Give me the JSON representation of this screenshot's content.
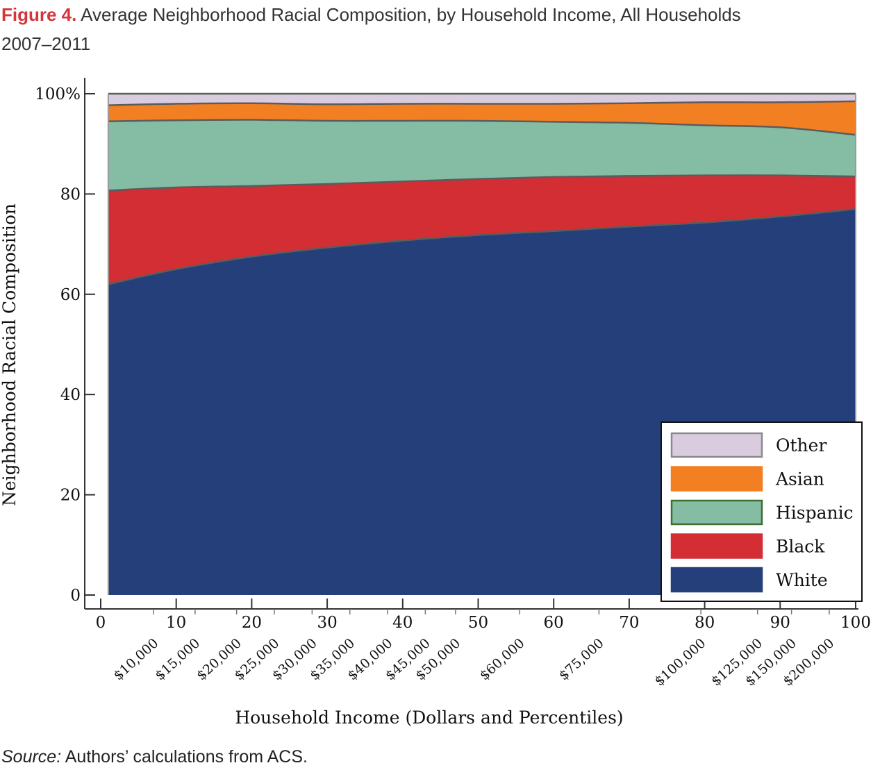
{
  "figure": {
    "label": "Figure 4.",
    "title_line1": "Average Neighborhood Racial Composition, by Household Income, All Households",
    "title_line2": "2007–2011"
  },
  "source": {
    "label": "Source:",
    "text": "Authors’ calculations from ACS."
  },
  "chart_data": {
    "type": "area",
    "stacked": true,
    "xlabel": "Household Income (Dollars and Percentiles)",
    "ylabel": "Neighborhood Racial Composition",
    "xlim": [
      0,
      100
    ],
    "ylim": [
      0,
      100
    ],
    "x_ticks": [
      0,
      10,
      20,
      30,
      40,
      50,
      60,
      70,
      80,
      90,
      100
    ],
    "y_ticks": [
      0,
      20,
      40,
      60,
      80,
      100
    ],
    "y_tick_labels": [
      "0",
      "20",
      "40",
      "60",
      "80",
      "100%"
    ],
    "income_ticks": [
      {
        "label": "$10,000",
        "x": 7
      },
      {
        "label": "$15,000",
        "x": 12.5
      },
      {
        "label": "$20,000",
        "x": 18
      },
      {
        "label": "$25,000",
        "x": 23
      },
      {
        "label": "$30,000",
        "x": 28
      },
      {
        "label": "$35,000",
        "x": 33
      },
      {
        "label": "$40,000",
        "x": 38
      },
      {
        "label": "$45,000",
        "x": 43
      },
      {
        "label": "$50,000",
        "x": 47
      },
      {
        "label": "$60,000",
        "x": 55.5
      },
      {
        "label": "$75,000",
        "x": 66
      },
      {
        "label": "$100,000",
        "x": 79.5
      },
      {
        "label": "$125,000",
        "x": 87
      },
      {
        "label": "$150,000",
        "x": 91.5
      },
      {
        "label": "$200,000",
        "x": 96.5
      }
    ],
    "x": [
      1,
      10,
      20,
      30,
      40,
      50,
      60,
      70,
      80,
      90,
      100
    ],
    "series": [
      {
        "name": "White",
        "color": "#243f7a",
        "values": [
          62.0,
          65.0,
          67.5,
          69.3,
          70.7,
          71.8,
          72.6,
          73.5,
          74.3,
          75.5,
          77.0
        ]
      },
      {
        "name": "Black",
        "color": "#d32e33",
        "values": [
          18.7,
          16.3,
          14.1,
          12.7,
          11.8,
          11.2,
          10.8,
          10.1,
          9.4,
          8.2,
          6.5
        ]
      },
      {
        "name": "Hispanic",
        "color": "#84bca4",
        "values": [
          13.8,
          13.4,
          13.2,
          12.6,
          12.1,
          11.6,
          11.0,
          10.6,
          10.0,
          9.6,
          8.3
        ]
      },
      {
        "name": "Asian",
        "color": "#f28023",
        "values": [
          3.2,
          3.3,
          3.3,
          3.3,
          3.4,
          3.4,
          3.6,
          3.9,
          4.6,
          5.0,
          6.7
        ]
      },
      {
        "name": "Other",
        "color": "#d9ccdf",
        "values": [
          2.3,
          2.0,
          1.9,
          2.1,
          2.0,
          2.0,
          2.0,
          1.9,
          1.7,
          1.7,
          1.5
        ]
      }
    ],
    "legend": {
      "placement": "bottom-right",
      "order": [
        "Other",
        "Asian",
        "Hispanic",
        "Black",
        "White"
      ]
    }
  }
}
